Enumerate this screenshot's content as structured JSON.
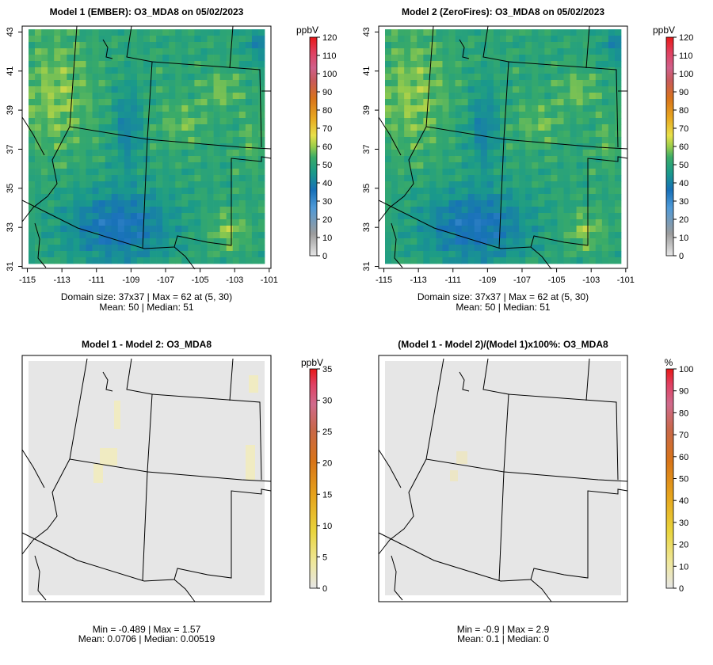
{
  "chart_data": [
    {
      "type": "heatmap",
      "title": "Model 1 (EMBER): O3_MDA8 on 05/02/2023",
      "unit": "ppbV",
      "x_ticks": [
        "-115",
        "-113",
        "-111",
        "-109",
        "-107",
        "-105",
        "-103",
        "-101"
      ],
      "y_ticks": [
        "31",
        "33",
        "35",
        "37",
        "39",
        "41",
        "43"
      ],
      "xlim": [
        -115.3,
        -100.9
      ],
      "ylim": [
        30.9,
        43.3
      ],
      "colorbar_ticks": [
        "0",
        "10",
        "20",
        "30",
        "40",
        "50",
        "60",
        "70",
        "80",
        "90",
        "100",
        "110",
        "120"
      ],
      "colorbar_range": [
        0,
        120
      ],
      "stat_line1": "Domain size: 37x37 | Max = 62 at (5, 30)",
      "stat_line2": "Mean: 50 |  Median: 51"
    },
    {
      "type": "heatmap",
      "title": "Model 2 (ZeroFires): O3_MDA8 on 05/02/2023",
      "unit": "ppbV",
      "x_ticks": [
        "-115",
        "-113",
        "-111",
        "-109",
        "-107",
        "-105",
        "-103",
        "-101"
      ],
      "y_ticks": [
        "31",
        "33",
        "35",
        "37",
        "39",
        "41",
        "43"
      ],
      "xlim": [
        -115.3,
        -100.9
      ],
      "ylim": [
        30.9,
        43.3
      ],
      "colorbar_ticks": [
        "0",
        "10",
        "20",
        "30",
        "40",
        "50",
        "60",
        "70",
        "80",
        "90",
        "100",
        "110",
        "120"
      ],
      "colorbar_range": [
        0,
        120
      ],
      "stat_line1": "Domain size: 37x37 | Max = 62 at (5, 30)",
      "stat_line2": "Mean: 50 |  Median: 51"
    },
    {
      "type": "heatmap",
      "title": "Model 1 - Model 2: O3_MDA8",
      "unit": "ppbV",
      "xlim": [
        -115.3,
        -100.9
      ],
      "ylim": [
        30.9,
        43.3
      ],
      "colorbar_ticks": [
        "0",
        "5",
        "10",
        "15",
        "20",
        "25",
        "30",
        "35"
      ],
      "colorbar_range": [
        0,
        35
      ],
      "stat_line1": "Min = -0.489 | Max = 1.57",
      "stat_line2": "Mean: 0.0706 |  Median: 0.00519"
    },
    {
      "type": "heatmap",
      "title": "(Model 1 - Model 2)/(Model 1)x100%: O3_MDA8",
      "unit": "%",
      "xlim": [
        -115.3,
        -100.9
      ],
      "ylim": [
        30.9,
        43.3
      ],
      "colorbar_ticks": [
        "0",
        "10",
        "20",
        "30",
        "40",
        "50",
        "60",
        "70",
        "80",
        "90",
        "100"
      ],
      "colorbar_range": [
        0,
        100
      ],
      "stat_line1": "Min = -0.9 | Max = 2.9",
      "stat_line2": "Mean: 0.1 |  Median: 0"
    }
  ]
}
